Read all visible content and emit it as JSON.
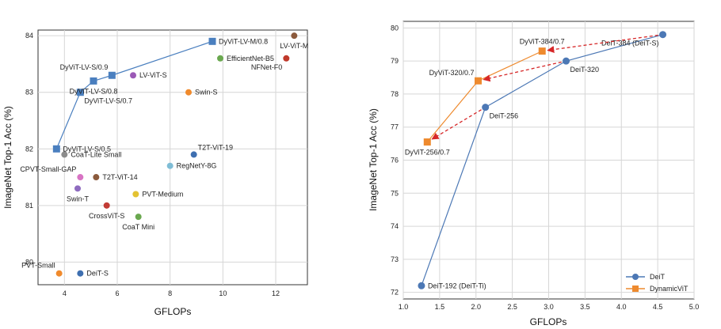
{
  "chart_data": [
    {
      "type": "scatter",
      "xlabel": "GFLOPs",
      "ylabel": "ImageNet Top-1 Acc (%)",
      "xlim": [
        3,
        13.2
      ],
      "ylim": [
        79.6,
        84.1
      ],
      "xticks": [
        4,
        6,
        8,
        10,
        12
      ],
      "yticks": [
        80,
        81,
        82,
        83,
        84
      ],
      "grid": true,
      "series": [
        {
          "name": "DyViT-LV",
          "type": "line",
          "marker": "square",
          "color": "#4a7fbf",
          "points": [
            {
              "x": 3.7,
              "y": 82.0,
              "label": "DyViT-LV-S/0.5",
              "anchor": "r"
            },
            {
              "x": 4.6,
              "y": 83.0,
              "label": "DyViT-LV-S/0.7",
              "anchor": "br"
            },
            {
              "x": 5.1,
              "y": 83.2,
              "label": "DyViT-LV-S/0.8",
              "anchor": "b"
            },
            {
              "x": 5.8,
              "y": 83.3,
              "label": "DyViT-LV-S/0.9",
              "anchor": "tl"
            },
            {
              "x": 9.6,
              "y": 83.9,
              "label": "DyViT-LV-M/0.8",
              "anchor": "r"
            }
          ]
        }
      ],
      "points": [
        {
          "x": 3.8,
          "y": 79.8,
          "label": "PVT-Small",
          "color": "#f08a2c",
          "anchor": "tl"
        },
        {
          "x": 4.6,
          "y": 79.8,
          "label": "DeiT-S",
          "color": "#3e6fb0",
          "anchor": "r"
        },
        {
          "x": 4.0,
          "y": 81.9,
          "label": "CoaT-Lite Small",
          "color": "#8c8c8c",
          "anchor": "r"
        },
        {
          "x": 4.6,
          "y": 81.5,
          "label": "CPVT-Small-GAP",
          "color": "#d874c4",
          "anchor": "tl"
        },
        {
          "x": 5.2,
          "y": 81.5,
          "label": "T2T-ViT-14",
          "color": "#8b5a3c",
          "anchor": "r"
        },
        {
          "x": 4.5,
          "y": 81.3,
          "label": "Swin-T",
          "color": "#8e6bbf",
          "anchor": "b"
        },
        {
          "x": 5.6,
          "y": 81.0,
          "label": "CrossViT-S",
          "color": "#c23b35",
          "anchor": "b"
        },
        {
          "x": 6.7,
          "y": 81.2,
          "label": "PVT-Medium",
          "color": "#e3c232",
          "anchor": "r"
        },
        {
          "x": 6.8,
          "y": 80.8,
          "label": "CoaT Mini",
          "color": "#6aa84f",
          "anchor": "b"
        },
        {
          "x": 8.0,
          "y": 81.7,
          "label": "RegNetY-8G",
          "color": "#7fbdd6",
          "anchor": "r"
        },
        {
          "x": 8.9,
          "y": 81.9,
          "label": "T2T-ViT-19",
          "color": "#3e6fb0",
          "anchor": "tr"
        },
        {
          "x": 6.6,
          "y": 83.3,
          "label": "LV-ViT-S",
          "color": "#9b59b6",
          "anchor": "r"
        },
        {
          "x": 8.7,
          "y": 83.0,
          "label": "Swin-S",
          "color": "#f08a2c",
          "anchor": "r"
        },
        {
          "x": 9.9,
          "y": 83.6,
          "label": "EfficientNet-B5",
          "color": "#6aa84f",
          "anchor": "r"
        },
        {
          "x": 12.4,
          "y": 83.6,
          "label": "NFNet-F0",
          "color": "#c0392b",
          "anchor": "bl"
        },
        {
          "x": 12.7,
          "y": 84.0,
          "label": "LV-ViT-M",
          "color": "#8b5a3c",
          "anchor": "b"
        }
      ]
    },
    {
      "type": "line",
      "xlabel": "GFLOPs",
      "ylabel": "ImageNet Top-1 Acc (%)",
      "xlim": [
        1.0,
        5.0
      ],
      "ylim": [
        71.8,
        80.2
      ],
      "xticks": [
        "1.0",
        "1.5",
        "2.0",
        "2.5",
        "3.0",
        "3.5",
        "4.0",
        "4.5",
        "5.0"
      ],
      "yticks": [
        72,
        73,
        74,
        75,
        76,
        77,
        78,
        79,
        80
      ],
      "grid": true,
      "legend": {
        "position": "lower-right",
        "entries": [
          "DeiT",
          "DynamicViT"
        ]
      },
      "series": [
        {
          "name": "DeiT",
          "marker": "circle",
          "color": "#4c78b5",
          "points": [
            {
              "x": 1.25,
              "y": 72.2,
              "label": "DeiT-192 (DeiT-Ti)",
              "anchor": "r"
            },
            {
              "x": 2.13,
              "y": 77.6,
              "label": "DeiT-256",
              "anchor": "br"
            },
            {
              "x": 3.24,
              "y": 79.0,
              "label": "DeiT-320",
              "anchor": "br"
            },
            {
              "x": 4.57,
              "y": 79.8,
              "label": "DeiT-384 (DeiT-S)",
              "anchor": "bl"
            }
          ]
        },
        {
          "name": "DynamicViT",
          "marker": "square",
          "color": "#ee8a2e",
          "points": [
            {
              "x": 1.33,
              "y": 76.55,
              "label": "DyViT-256/0.7",
              "anchor": "b"
            },
            {
              "x": 2.03,
              "y": 78.4,
              "label": "DyViT-320/0.7",
              "anchor": "tl"
            },
            {
              "x": 2.91,
              "y": 79.3,
              "label": "DyViT-384/0.7",
              "anchor": "t"
            }
          ]
        }
      ],
      "arrows": [
        {
          "from": [
            4.57,
            79.8
          ],
          "to": [
            2.91,
            79.3
          ]
        },
        {
          "from": [
            3.24,
            79.0
          ],
          "to": [
            2.03,
            78.4
          ]
        },
        {
          "from": [
            2.13,
            77.6
          ],
          "to": [
            1.33,
            76.55
          ]
        }
      ]
    }
  ]
}
